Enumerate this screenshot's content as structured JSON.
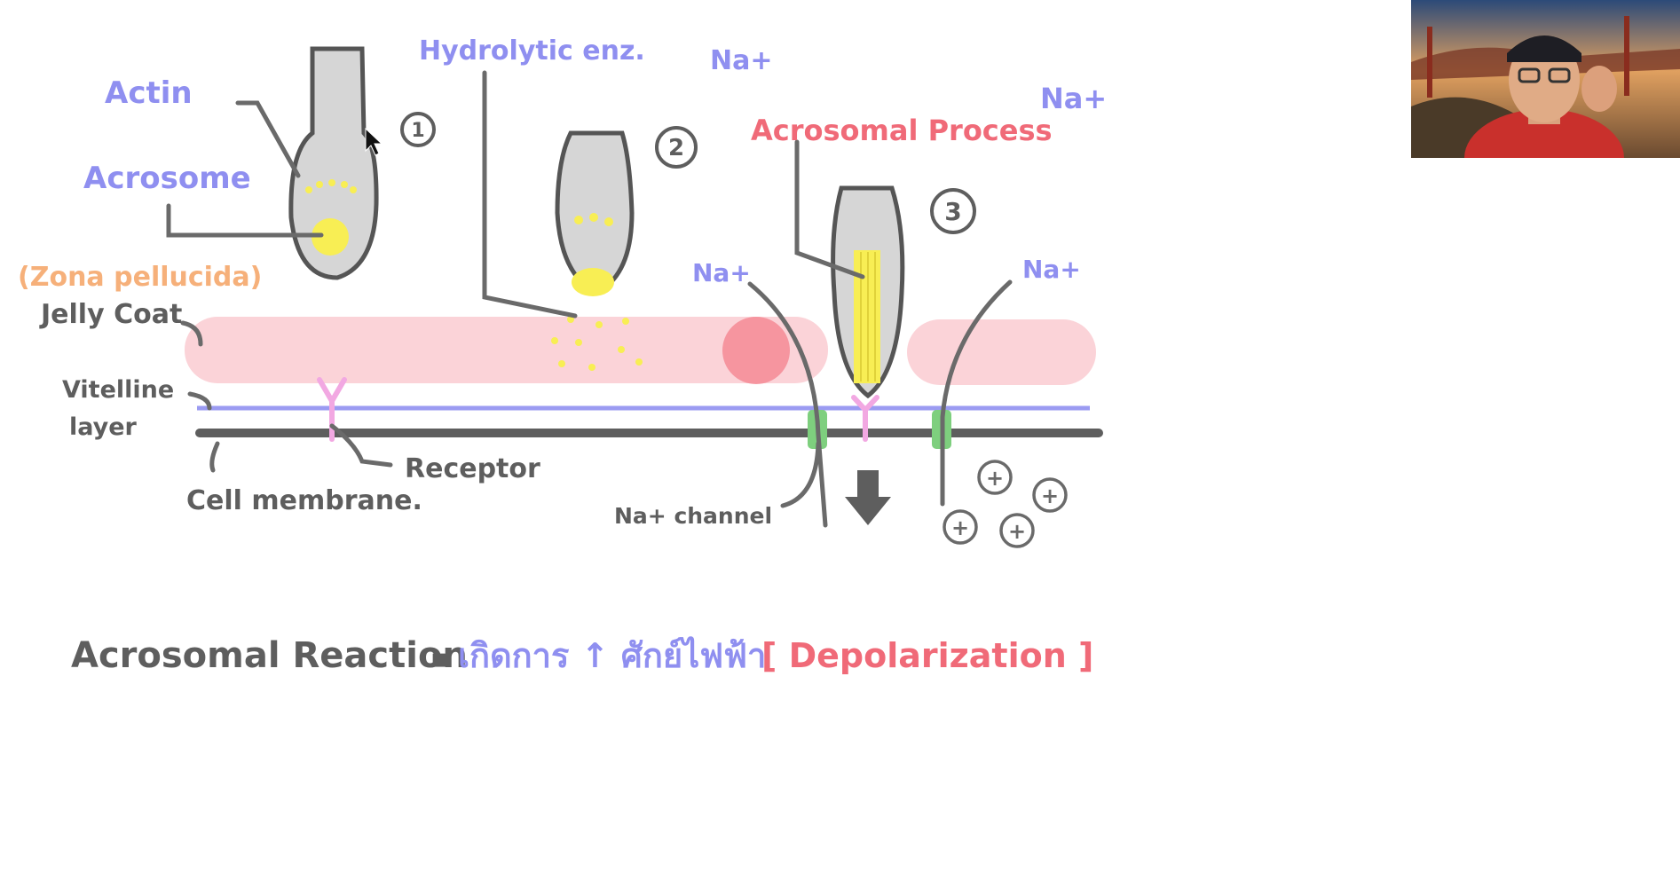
{
  "colors": {
    "purple": "#8f8ff0",
    "gray": "#5e5e5e",
    "red": "#f06a78",
    "orange": "#f6b07a",
    "pink_band": "#fbd3d8",
    "yellow": "#f8ee54",
    "green": "#7ecf7e",
    "receptor": "#f2a8e2"
  },
  "labels": {
    "actin": "Actin",
    "acrosome": "Acrosome",
    "hydrolytic": "Hydrolytic enz.",
    "na1": "Na+",
    "na2": "Na+",
    "na3": "Na+",
    "na4": "Na+",
    "acrosomal_process": "Acrosomal Process",
    "zona": "(Zona pellucida)",
    "jelly": "Jelly Coat",
    "vitelline1": "Vitelline",
    "vitelline2": "layer",
    "receptor": "Receptor",
    "cell_membrane": "Cell membrane.",
    "na_channel": "Na+ channel",
    "step1": "1",
    "step2": "2",
    "step3": "3"
  },
  "footer": {
    "title": "Acrosomal Reaction",
    "bullet": "▪",
    "thai_text": "เกิดการ ↑ ศักย์ไฟฟ้า",
    "bracket_text": "[ Depolarization ]"
  },
  "plus_signs": [
    "+",
    "+",
    "+",
    "+",
    "+"
  ],
  "webcam": {
    "icon": "video-camera-icon"
  }
}
